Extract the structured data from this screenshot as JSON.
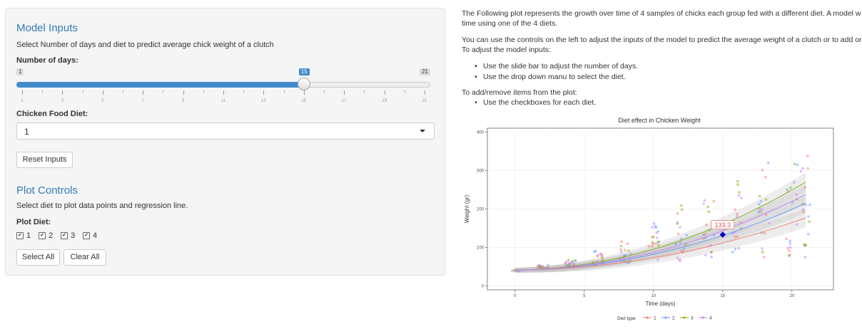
{
  "sidebar": {
    "model_inputs_title": "Model Inputs",
    "model_inputs_desc": "Select Number of days and diet to predict average chick weight of a clutch",
    "days_label": "Number of days:",
    "slider": {
      "min": 1,
      "max": 21,
      "value": 15,
      "min_label": "1",
      "max_label": "21",
      "value_label": "15",
      "tick_labels": [
        "1",
        "3",
        "5",
        "7",
        "9",
        "11",
        "13",
        "15",
        "17",
        "19",
        "21"
      ]
    },
    "diet_label": "Chicken Food Diet:",
    "diet_selected": "1",
    "reset_button": "Reset Inputs",
    "plot_controls_title": "Plot Controls",
    "plot_controls_desc": "Select diet to plot data points and regression line.",
    "plot_diet_label": "Plot Diet:",
    "checkboxes": [
      {
        "label": "1",
        "checked": true,
        "check": "✔"
      },
      {
        "label": "2",
        "checked": true,
        "check": "✔"
      },
      {
        "label": "3",
        "checked": true,
        "check": "✔"
      },
      {
        "label": "4",
        "checked": true,
        "check": "✔"
      }
    ],
    "select_all_button": "Select All",
    "clear_all_button": "Clear All"
  },
  "main": {
    "intro_line1": "The Following plot represents the growth over time of 4 samples of chicks each group fed with a different diet. A model w",
    "intro_line2": "time using one of the 4 diets.",
    "controls_line1": "You can use the controls on the left to adjust the inputs of the model to predict the average weight of a clutch or to add or",
    "controls_line2": "To adjust the model inputs:",
    "adjust_items": [
      "Use the slide bar to adjust the number of days.",
      "Use the drop down manu to select the diet."
    ],
    "addremove_line": "To add/remove items from the plot:",
    "addremove_items": [
      "Use the checkboxes for each diet."
    ]
  },
  "colors": {
    "diet1": "#F8766D",
    "diet2": "#619CFF",
    "diet3": "#7CAE00",
    "diet4": "#C77CFF",
    "prediction": "#0000CC",
    "accent": "#337ab7",
    "slider": "#428bca"
  },
  "chart_data": {
    "type": "scatter",
    "title": "Diet effect in Chicken Weight",
    "xlabel": "Time (days)",
    "ylabel": "Weight (gr)",
    "xlim": [
      -2,
      23
    ],
    "ylim": [
      -10,
      410
    ],
    "xticks": [
      0,
      5,
      10,
      15,
      20
    ],
    "yticks": [
      0,
      100,
      200,
      300,
      400
    ],
    "legend_title": "Diet type",
    "series": [
      {
        "name": "1",
        "color": "#F8766D",
        "fit": [
          [
            0,
            41
          ],
          [
            21,
            177
          ]
        ]
      },
      {
        "name": "2",
        "color": "#619CFF",
        "fit": [
          [
            0,
            41
          ],
          [
            21,
            215
          ]
        ]
      },
      {
        "name": "3",
        "color": "#7CAE00",
        "fit": [
          [
            0,
            41
          ],
          [
            21,
            270
          ]
        ]
      },
      {
        "name": "4",
        "color": "#C77CFF",
        "fit": [
          [
            0,
            41
          ],
          [
            21,
            238
          ]
        ]
      }
    ],
    "prediction": {
      "x": 15,
      "y": 133.3,
      "label": "133.3"
    },
    "point_ranges": [
      {
        "day": 0,
        "low": 38,
        "high": 43
      },
      {
        "day": 2,
        "low": 45,
        "high": 55
      },
      {
        "day": 4,
        "low": 48,
        "high": 68
      },
      {
        "day": 6,
        "low": 55,
        "high": 95
      },
      {
        "day": 8,
        "low": 60,
        "high": 130
      },
      {
        "day": 10,
        "low": 55,
        "high": 165
      },
      {
        "day": 12,
        "low": 60,
        "high": 215
      },
      {
        "day": 14,
        "low": 65,
        "high": 240
      },
      {
        "day": 16,
        "low": 70,
        "high": 280
      },
      {
        "day": 18,
        "low": 75,
        "high": 330
      },
      {
        "day": 20,
        "low": 75,
        "high": 360
      },
      {
        "day": 21,
        "low": 75,
        "high": 370
      }
    ]
  }
}
